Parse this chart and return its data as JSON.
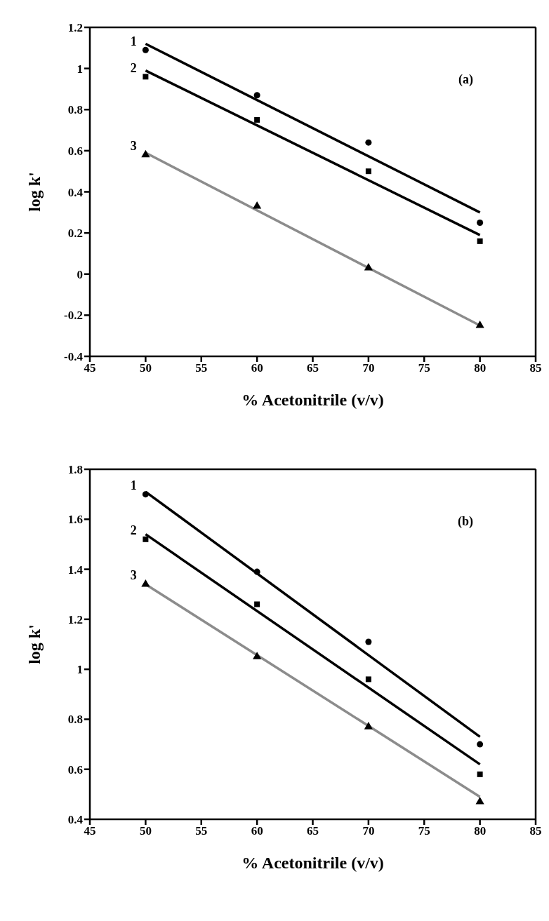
{
  "chart_data": [
    {
      "type": "scatter",
      "xlabel": "% Acetonitrile (v/v)",
      "ylabel": "log k'",
      "annotations": [
        "(a)"
      ],
      "xlim": [
        45,
        85
      ],
      "xticks": [
        45,
        50,
        55,
        60,
        65,
        70,
        75,
        80,
        85
      ],
      "ylim": [
        -0.4,
        1.2
      ],
      "yticks": [
        -0.4,
        -0.2,
        0,
        0.2,
        0.4,
        0.6,
        0.8,
        1,
        1.2
      ],
      "legend": false,
      "series": [
        {
          "name": "1",
          "color": "#000000",
          "marker": "circle",
          "x": [
            50,
            60,
            70,
            80
          ],
          "values": [
            1.09,
            0.87,
            0.64,
            0.25
          ]
        },
        {
          "name": "2",
          "color": "#000000",
          "marker": "square",
          "x": [
            50,
            60,
            70,
            80
          ],
          "values": [
            0.96,
            0.75,
            0.5,
            0.16
          ]
        },
        {
          "name": "3",
          "color": "#000000",
          "marker": "triangle",
          "x": [
            50,
            60,
            70,
            80
          ],
          "values": [
            0.58,
            0.33,
            0.03,
            -0.25
          ]
        },
        {
          "type": "line",
          "color": "#000000",
          "x": [
            50,
            80
          ],
          "values": [
            1.12,
            0.3
          ]
        },
        {
          "type": "line",
          "color": "#000000",
          "x": [
            50,
            80
          ],
          "values": [
            0.99,
            0.19
          ]
        },
        {
          "type": "line",
          "color": "#8c8c8c",
          "x": [
            50,
            80
          ],
          "values": [
            0.59,
            -0.25
          ]
        }
      ]
    },
    {
      "type": "scatter",
      "xlabel": "% Acetonitrile (v/v)",
      "ylabel": "log k'",
      "annotations": [
        "(b)"
      ],
      "xlim": [
        45,
        85
      ],
      "xticks": [
        45,
        50,
        55,
        60,
        65,
        70,
        75,
        80,
        85
      ],
      "ylim": [
        0.4,
        1.8
      ],
      "yticks": [
        0.4,
        0.6,
        0.8,
        1,
        1.2,
        1.4,
        1.6,
        1.8
      ],
      "legend": false,
      "series": [
        {
          "name": "1",
          "color": "#000000",
          "marker": "circle",
          "x": [
            50,
            60,
            70,
            80
          ],
          "values": [
            1.7,
            1.39,
            1.11,
            0.7
          ]
        },
        {
          "name": "2",
          "color": "#000000",
          "marker": "square",
          "x": [
            50,
            60,
            70,
            80
          ],
          "values": [
            1.52,
            1.26,
            0.96,
            0.58
          ]
        },
        {
          "name": "3",
          "color": "#000000",
          "marker": "triangle",
          "x": [
            50,
            60,
            70,
            80
          ],
          "values": [
            1.34,
            1.05,
            0.77,
            0.47
          ]
        },
        {
          "type": "line",
          "color": "#000000",
          "x": [
            50,
            80
          ],
          "values": [
            1.71,
            0.73
          ]
        },
        {
          "type": "line",
          "color": "#000000",
          "x": [
            50,
            80
          ],
          "values": [
            1.54,
            0.62
          ]
        },
        {
          "type": "line",
          "color": "#8c8c8c",
          "x": [
            50,
            80
          ],
          "values": [
            1.34,
            0.49
          ]
        }
      ]
    }
  ]
}
